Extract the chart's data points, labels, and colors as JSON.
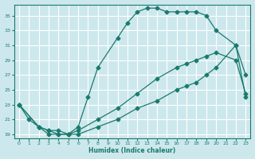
{
  "xlabel": "Humidex (Indice chaleur)",
  "ylabel": "",
  "bg_color": "#cde8ed",
  "grid_color": "#b0d8de",
  "line_color": "#1a7a6e",
  "xlim": [
    -0.5,
    23.5
  ],
  "ylim": [
    18.5,
    36.5
  ],
  "xticks": [
    0,
    1,
    2,
    3,
    4,
    5,
    6,
    7,
    8,
    9,
    10,
    11,
    12,
    13,
    14,
    15,
    16,
    17,
    18,
    19,
    20,
    21,
    22,
    23
  ],
  "yticks": [
    19,
    21,
    23,
    25,
    27,
    29,
    31,
    33,
    35
  ],
  "line1": {
    "x": [
      0,
      1,
      2,
      3,
      4,
      5,
      6,
      7,
      8,
      10,
      11,
      12,
      13,
      14,
      15,
      16,
      17,
      18,
      19,
      20,
      22,
      23
    ],
    "y": [
      23,
      21,
      20,
      19,
      19,
      19,
      20,
      24,
      28,
      32,
      34,
      35.5,
      36,
      36,
      35.5,
      35.5,
      35.5,
      35.5,
      35,
      33,
      31,
      27
    ]
  },
  "line2": {
    "x": [
      0,
      2,
      3,
      4,
      5,
      6,
      8,
      10,
      12,
      14,
      16,
      17,
      18,
      19,
      20,
      22,
      23
    ],
    "y": [
      23,
      20,
      19.5,
      19.5,
      19,
      19.5,
      21,
      22.5,
      24.5,
      26.5,
      28,
      28.5,
      29,
      29.5,
      30,
      29,
      24.5
    ]
  },
  "line3": {
    "x": [
      0,
      2,
      3,
      4,
      5,
      6,
      8,
      10,
      12,
      14,
      16,
      17,
      18,
      19,
      20,
      22,
      23
    ],
    "y": [
      23,
      20,
      19.5,
      19,
      19,
      19,
      20,
      21,
      22.5,
      23.5,
      25,
      25.5,
      26,
      27,
      28,
      31,
      24
    ]
  }
}
